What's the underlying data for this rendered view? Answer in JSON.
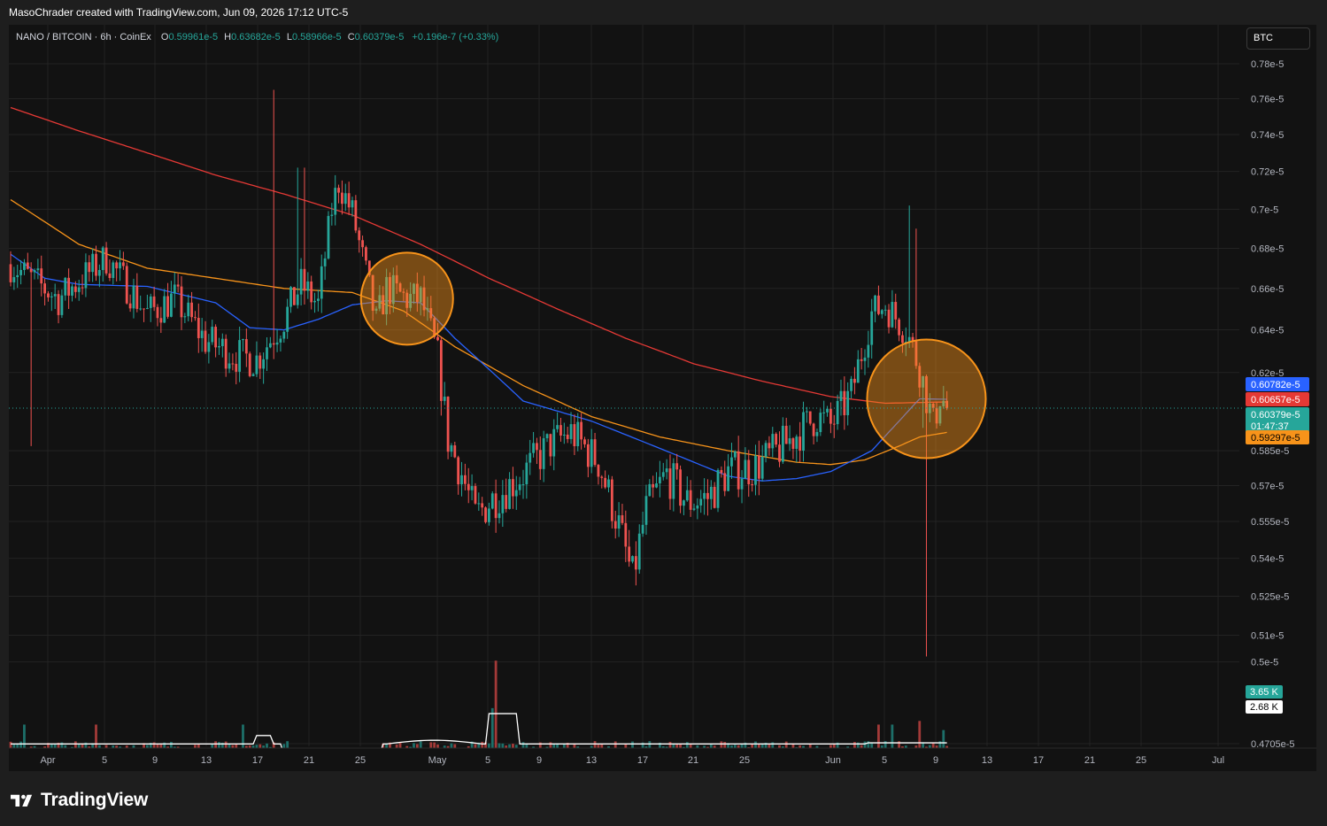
{
  "header": {
    "attribution": "MasoChrader created with TradingView.com, Jun 09, 2026 17:12 UTC-5"
  },
  "legend": {
    "symbol": "NANO / BITCOIN · 6h · CoinEx",
    "open_label": "O",
    "open": "0.59961e-5",
    "high_label": "H",
    "high": "0.63682e-5",
    "low_label": "L",
    "low": "0.58966e-5",
    "close_label": "C",
    "close": "0.60379e-5",
    "change": "+0.196e-7 (+0.33%)"
  },
  "currency_button": "BTC",
  "footer": {
    "brand": "TradingView"
  },
  "colors": {
    "background": "#121212",
    "page": "#1e1e1e",
    "up": "#26a69a",
    "down": "#ef5350",
    "ma_blue": "#2962ff",
    "ma_orange": "#f7931a",
    "ma_red": "#e53935",
    "highlight": "#f7931a"
  },
  "chart_data": {
    "type": "candlestick",
    "symbol": "NANO / BITCOIN",
    "interval": "6h",
    "exchange": "CoinEx",
    "y_axis": {
      "tick_labels": [
        "0.78e-5",
        "0.76e-5",
        "0.74e-5",
        "0.72e-5",
        "0.7e-5",
        "0.68e-5",
        "0.66e-5",
        "0.64e-5",
        "0.62e-5",
        "0.585e-5",
        "0.57e-5",
        "0.555e-5",
        "0.54e-5",
        "0.525e-5",
        "0.51e-5",
        "0.5e-5",
        "0.4705e-5"
      ],
      "tick_values": [
        0.78,
        0.76,
        0.74,
        0.72,
        0.7,
        0.68,
        0.66,
        0.64,
        0.62,
        0.585,
        0.57,
        0.555,
        0.54,
        0.525,
        0.51,
        0.5,
        0.4705
      ],
      "log_scale": true,
      "unit_multiplier": "e-5"
    },
    "x_axis": {
      "tick_labels": [
        "Apr",
        "5",
        "9",
        "13",
        "17",
        "21",
        "25",
        "May",
        "5",
        "9",
        "13",
        "17",
        "21",
        "25",
        "Jun",
        "5",
        "9",
        "13",
        "17",
        "21",
        "25",
        "Jul"
      ]
    },
    "price_tags": [
      {
        "value": "0.60782e-5",
        "series": "blue moving average"
      },
      {
        "value": "0.60657e-5",
        "series": "red moving average"
      },
      {
        "value": "0.60379e-5",
        "countdown": "01:47:37",
        "series": "last price"
      },
      {
        "value": "0.59297e-5",
        "series": "orange moving average"
      }
    ],
    "volume_tags": [
      "3.65 K",
      "2.68 K"
    ],
    "price_waypoints": [
      [
        0,
        0.672
      ],
      [
        14,
        0.655
      ],
      [
        28,
        0.675
      ],
      [
        40,
        0.648
      ],
      [
        48,
        0.655
      ],
      [
        57,
        0.635
      ],
      [
        66,
        0.628
      ],
      [
        72,
        0.626
      ],
      [
        80,
        0.645
      ],
      [
        85,
        0.662
      ],
      [
        90,
        0.652
      ],
      [
        94,
        0.7
      ],
      [
        96,
        0.714
      ],
      [
        100,
        0.698
      ],
      [
        104,
        0.667
      ],
      [
        107,
        0.643
      ],
      [
        110,
        0.66
      ],
      [
        116,
        0.655
      ],
      [
        120,
        0.655
      ],
      [
        125,
        0.627
      ],
      [
        128,
        0.59
      ],
      [
        132,
        0.575
      ],
      [
        136,
        0.557
      ],
      [
        140,
        0.563
      ],
      [
        150,
        0.575
      ],
      [
        158,
        0.588
      ],
      [
        164,
        0.593
      ],
      [
        172,
        0.58
      ],
      [
        178,
        0.553
      ],
      [
        182,
        0.532
      ],
      [
        186,
        0.56
      ],
      [
        192,
        0.575
      ],
      [
        198,
        0.563
      ],
      [
        204,
        0.565
      ],
      [
        210,
        0.576
      ],
      [
        218,
        0.578
      ],
      [
        226,
        0.587
      ],
      [
        232,
        0.595
      ],
      [
        236,
        0.6
      ],
      [
        240,
        0.596
      ],
      [
        246,
        0.61
      ],
      [
        252,
        0.648
      ],
      [
        256,
        0.652
      ],
      [
        262,
        0.64
      ],
      [
        266,
        0.622
      ],
      [
        270,
        0.596
      ],
      [
        272,
        0.61
      ],
      [
        274,
        0.6038
      ]
    ],
    "sma_orange": [
      [
        0,
        0.705
      ],
      [
        20,
        0.682
      ],
      [
        40,
        0.67
      ],
      [
        60,
        0.665
      ],
      [
        80,
        0.66
      ],
      [
        100,
        0.658
      ],
      [
        115,
        0.649
      ],
      [
        130,
        0.632
      ],
      [
        150,
        0.614
      ],
      [
        170,
        0.6
      ],
      [
        190,
        0.591
      ],
      [
        210,
        0.585
      ],
      [
        230,
        0.58
      ],
      [
        240,
        0.579
      ],
      [
        250,
        0.581
      ],
      [
        260,
        0.587
      ],
      [
        266,
        0.591
      ],
      [
        274,
        0.593
      ]
    ],
    "sma_red": [
      [
        0,
        0.755
      ],
      [
        20,
        0.742
      ],
      [
        40,
        0.73
      ],
      [
        60,
        0.718
      ],
      [
        80,
        0.708
      ],
      [
        100,
        0.697
      ],
      [
        120,
        0.682
      ],
      [
        140,
        0.665
      ],
      [
        160,
        0.65
      ],
      [
        180,
        0.636
      ],
      [
        200,
        0.624
      ],
      [
        220,
        0.616
      ],
      [
        240,
        0.609
      ],
      [
        256,
        0.606
      ],
      [
        274,
        0.6066
      ]
    ],
    "sma_blue": [
      [
        0,
        0.677
      ],
      [
        10,
        0.665
      ],
      [
        20,
        0.662
      ],
      [
        40,
        0.661
      ],
      [
        60,
        0.653
      ],
      [
        70,
        0.641
      ],
      [
        80,
        0.64
      ],
      [
        90,
        0.645
      ],
      [
        100,
        0.652
      ],
      [
        110,
        0.654
      ],
      [
        120,
        0.653
      ],
      [
        130,
        0.636
      ],
      [
        150,
        0.607
      ],
      [
        170,
        0.598
      ],
      [
        190,
        0.586
      ],
      [
        210,
        0.574
      ],
      [
        220,
        0.572
      ],
      [
        230,
        0.573
      ],
      [
        240,
        0.576
      ],
      [
        252,
        0.585
      ],
      [
        260,
        0.598
      ],
      [
        266,
        0.608
      ],
      [
        274,
        0.6078
      ]
    ],
    "candle_count": 275,
    "last_price": 0.60379,
    "highlight_circles": [
      {
        "center_bar": 116,
        "center_price": 0.655,
        "note": "orange circle around price crossing moving averages (late April)"
      },
      {
        "center_bar": 268,
        "center_price": 0.608,
        "note": "orange circle around price near moving averages (early June)"
      }
    ]
  }
}
